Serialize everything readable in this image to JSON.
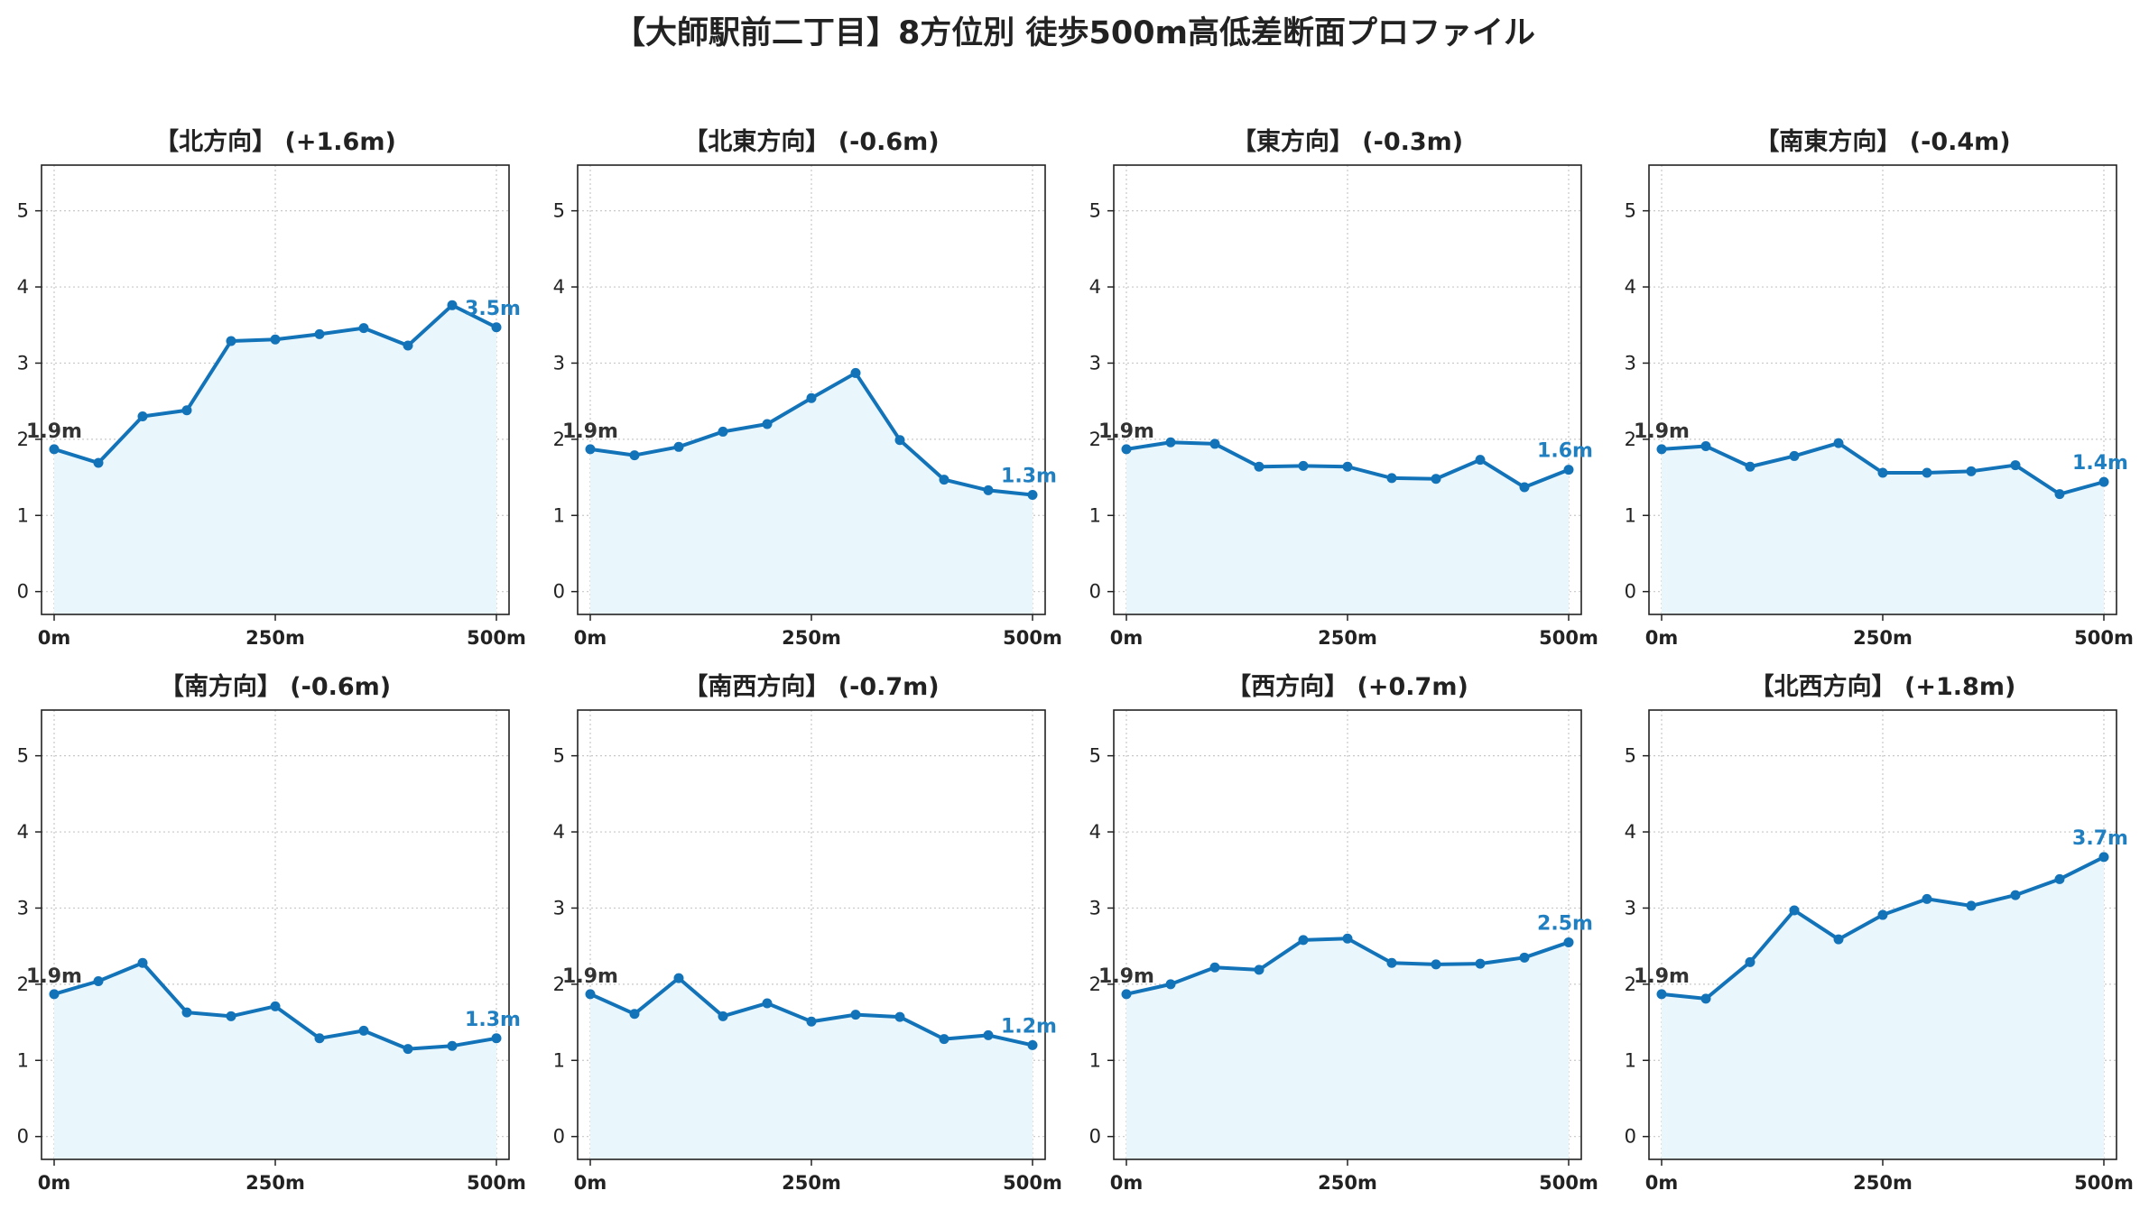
{
  "title": "【大師駅前二丁目】8方位別 徒歩500m高低差断面プロファイル",
  "colors": {
    "line": "#1273b9",
    "fill": "#e9f6fc",
    "end_label": "#1f7fc0",
    "start_label": "#333333",
    "grid": "#c8c8c8"
  },
  "chart_data": [
    {
      "type": "area",
      "title": "【北方向】 (+1.6m)",
      "x": [
        0,
        50,
        100,
        150,
        200,
        250,
        300,
        350,
        400,
        450,
        500
      ],
      "xticks": [
        "0m",
        "250m",
        "500m"
      ],
      "ylim": [
        -0.3,
        5.6
      ],
      "yticks": [
        0,
        1,
        2,
        3,
        4,
        5
      ],
      "values": [
        1.87,
        1.69,
        2.3,
        2.38,
        3.29,
        3.31,
        3.38,
        3.46,
        3.23,
        3.76,
        3.47
      ],
      "start_label": "1.9m",
      "end_label": "3.5m",
      "grid": true
    },
    {
      "type": "area",
      "title": "【北東方向】 (-0.6m)",
      "x": [
        0,
        50,
        100,
        150,
        200,
        250,
        300,
        350,
        400,
        450,
        500
      ],
      "xticks": [
        "0m",
        "250m",
        "500m"
      ],
      "ylim": [
        -0.3,
        5.6
      ],
      "yticks": [
        0,
        1,
        2,
        3,
        4,
        5
      ],
      "values": [
        1.87,
        1.79,
        1.9,
        2.1,
        2.2,
        2.54,
        2.87,
        1.99,
        1.47,
        1.33,
        1.27
      ],
      "start_label": "1.9m",
      "end_label": "1.3m",
      "grid": true
    },
    {
      "type": "area",
      "title": "【東方向】 (-0.3m)",
      "x": [
        0,
        50,
        100,
        150,
        200,
        250,
        300,
        350,
        400,
        450,
        500
      ],
      "xticks": [
        "0m",
        "250m",
        "500m"
      ],
      "ylim": [
        -0.3,
        5.6
      ],
      "yticks": [
        0,
        1,
        2,
        3,
        4,
        5
      ],
      "values": [
        1.87,
        1.96,
        1.94,
        1.64,
        1.65,
        1.64,
        1.49,
        1.48,
        1.73,
        1.37,
        1.6
      ],
      "start_label": "1.9m",
      "end_label": "1.6m",
      "grid": true
    },
    {
      "type": "area",
      "title": "【南東方向】 (-0.4m)",
      "x": [
        0,
        50,
        100,
        150,
        200,
        250,
        300,
        350,
        400,
        450,
        500
      ],
      "xticks": [
        "0m",
        "250m",
        "500m"
      ],
      "ylim": [
        -0.3,
        5.6
      ],
      "yticks": [
        0,
        1,
        2,
        3,
        4,
        5
      ],
      "values": [
        1.87,
        1.91,
        1.64,
        1.78,
        1.95,
        1.56,
        1.56,
        1.58,
        1.66,
        1.28,
        1.44
      ],
      "start_label": "1.9m",
      "end_label": "1.4m",
      "grid": true
    },
    {
      "type": "area",
      "title": "【南方向】 (-0.6m)",
      "x": [
        0,
        50,
        100,
        150,
        200,
        250,
        300,
        350,
        400,
        450,
        500
      ],
      "xticks": [
        "0m",
        "250m",
        "500m"
      ],
      "ylim": [
        -0.3,
        5.6
      ],
      "yticks": [
        0,
        1,
        2,
        3,
        4,
        5
      ],
      "values": [
        1.87,
        2.04,
        2.28,
        1.63,
        1.58,
        1.71,
        1.29,
        1.39,
        1.15,
        1.19,
        1.29
      ],
      "start_label": "1.9m",
      "end_label": "1.3m",
      "grid": true
    },
    {
      "type": "area",
      "title": "【南西方向】 (-0.7m)",
      "x": [
        0,
        50,
        100,
        150,
        200,
        250,
        300,
        350,
        400,
        450,
        500
      ],
      "xticks": [
        "0m",
        "250m",
        "500m"
      ],
      "ylim": [
        -0.3,
        5.6
      ],
      "yticks": [
        0,
        1,
        2,
        3,
        4,
        5
      ],
      "values": [
        1.87,
        1.61,
        2.08,
        1.58,
        1.75,
        1.51,
        1.6,
        1.57,
        1.28,
        1.33,
        1.2
      ],
      "start_label": "1.9m",
      "end_label": "1.2m",
      "grid": true
    },
    {
      "type": "area",
      "title": "【西方向】 (+0.7m)",
      "x": [
        0,
        50,
        100,
        150,
        200,
        250,
        300,
        350,
        400,
        450,
        500
      ],
      "xticks": [
        "0m",
        "250m",
        "500m"
      ],
      "ylim": [
        -0.3,
        5.6
      ],
      "yticks": [
        0,
        1,
        2,
        3,
        4,
        5
      ],
      "values": [
        1.87,
        2.0,
        2.22,
        2.19,
        2.58,
        2.6,
        2.28,
        2.26,
        2.27,
        2.35,
        2.55
      ],
      "start_label": "1.9m",
      "end_label": "2.5m",
      "grid": true
    },
    {
      "type": "area",
      "title": "【北西方向】 (+1.8m)",
      "x": [
        0,
        50,
        100,
        150,
        200,
        250,
        300,
        350,
        400,
        450,
        500
      ],
      "xticks": [
        "0m",
        "250m",
        "500m"
      ],
      "ylim": [
        -0.3,
        5.6
      ],
      "yticks": [
        0,
        1,
        2,
        3,
        4,
        5
      ],
      "values": [
        1.87,
        1.81,
        2.29,
        2.97,
        2.59,
        2.91,
        3.12,
        3.03,
        3.17,
        3.38,
        3.67
      ],
      "start_label": "1.9m",
      "end_label": "3.7m",
      "grid": true
    }
  ]
}
